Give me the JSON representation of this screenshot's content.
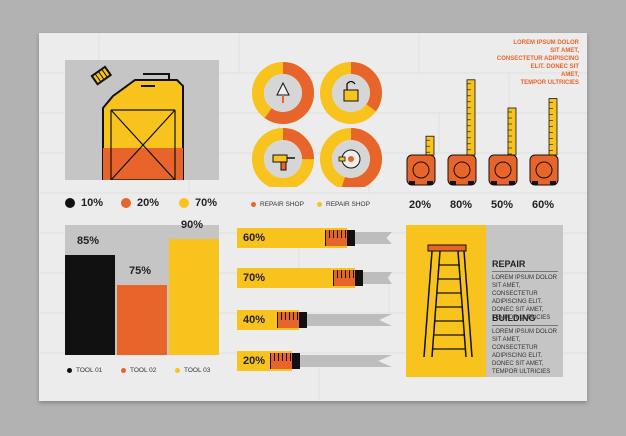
{
  "lorem_lines": [
    "LOREM IPSUM DOLOR",
    "SIT AMET,",
    "CONSECTETUR ADIPISCING",
    "ELIT. DONEC SIT",
    "AMET,",
    "TEMPOR ULTRICIES"
  ],
  "canister": {
    "legend": [
      {
        "label": "10%",
        "color": "#111111"
      },
      {
        "label": "20%",
        "color": "#e7652a"
      },
      {
        "label": "70%",
        "color": "#f7c31c"
      }
    ]
  },
  "donuts": {
    "legend": [
      {
        "label": "REPAIR SHOP",
        "color": "#e7652a"
      },
      {
        "label": "REPAIR SHOP",
        "color": "#f7c31c"
      }
    ],
    "items": [
      {
        "icon": "trowel-icon",
        "fraction": 0.6
      },
      {
        "icon": "lock-icon",
        "fraction": 0.35
      },
      {
        "icon": "drill-icon",
        "fraction": 0.25
      },
      {
        "icon": "saw-icon",
        "fraction": 0.55
      }
    ]
  },
  "tapes": {
    "labels": [
      "20%",
      "80%",
      "50%",
      "60%"
    ]
  },
  "colors": {
    "yellow": "#f7c31c",
    "orange": "#e7652a",
    "black": "#111111",
    "gray": "#bdbdbd"
  },
  "chart_data": [
    {
      "type": "bar",
      "categories": [
        "TOOL 01",
        "TOOL 02",
        "TOOL 03"
      ],
      "values": [
        85,
        75,
        90
      ],
      "labels": [
        "85%",
        "75%",
        "90%"
      ],
      "ylim": [
        0,
        100
      ]
    },
    {
      "type": "bar",
      "orientation": "horizontal",
      "values": [
        60,
        70,
        40,
        20
      ],
      "labels": [
        "60%",
        "70%",
        "40%",
        "20%"
      ],
      "xlim": [
        0,
        100
      ]
    },
    {
      "type": "bar",
      "categories": [
        "20%",
        "80%",
        "50%",
        "60%"
      ],
      "values": [
        20,
        80,
        50,
        60
      ],
      "ylim": [
        0,
        100
      ]
    }
  ],
  "repair": {
    "title": "REPAIR",
    "lines": [
      "LOREM IPSUM DOLOR SIT AMET,",
      "CONSECTETUR ADIPISCING ELIT.",
      "DONEC SIT AMET, TEMPOR ULTRICIES"
    ]
  },
  "building": {
    "title": "BUILDING",
    "lines": [
      "LOREM IPSUM DOLOR SIT AMET,",
      "CONSECTETUR ADIPISCING ELIT.",
      "DONEC SIT AMET, TEMPOR ULTRICIES"
    ]
  }
}
